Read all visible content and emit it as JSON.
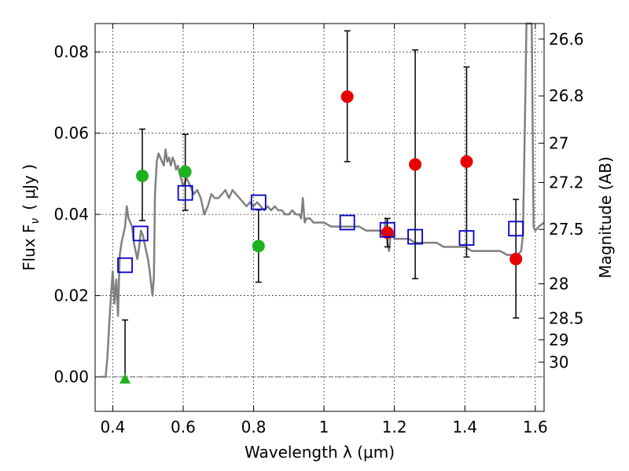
{
  "chart_data": {
    "type": "scatter",
    "xlabel": "Wavelength  λ (μm)",
    "ylabel_main": "Flux  F",
    "ylabel_sub": "ν",
    "ylabel_unit": "( μJy )",
    "ylabel_right": "Magnitude (AB)",
    "xlim": [
      0.35,
      1.625
    ],
    "ylim": [
      -0.0085,
      0.087
    ],
    "x_ticks": [
      0.4,
      0.6,
      0.8,
      1.0,
      1.2,
      1.4,
      1.6
    ],
    "x_tick_labels": [
      "0.4",
      "0.6",
      "0.8",
      "1",
      "1.2",
      "1.4",
      "1.6"
    ],
    "y_ticks": [
      0.0,
      0.02,
      0.04,
      0.06,
      0.08
    ],
    "y_tick_labels": [
      "0.00",
      "0.02",
      "0.04",
      "0.06",
      "0.08"
    ],
    "right_ticks": [
      {
        "mag": 26.6,
        "label": "26.6"
      },
      {
        "mag": 26.8,
        "label": "26.8"
      },
      {
        "mag": 27.0,
        "label": "27"
      },
      {
        "mag": 27.2,
        "label": "27.2"
      },
      {
        "mag": 27.5,
        "label": "27.5"
      },
      {
        "mag": 28.0,
        "label": "28"
      },
      {
        "mag": 28.5,
        "label": "28.5"
      },
      {
        "mag": 29.0,
        "label": "29"
      },
      {
        "mag": 30.0,
        "label": "30"
      }
    ],
    "grid": true,
    "zero_line": true,
    "colors": {
      "model": "#808080",
      "green": "#1db21d",
      "red": "#e60000",
      "blue_box": "#0000cc",
      "errorbar": "#000000"
    },
    "model_spectrum": {
      "x": [
        0.365,
        0.38,
        0.385,
        0.39,
        0.395,
        0.4,
        0.405,
        0.41,
        0.415,
        0.418,
        0.42,
        0.425,
        0.43,
        0.435,
        0.44,
        0.445,
        0.45,
        0.455,
        0.46,
        0.465,
        0.47,
        0.475,
        0.48,
        0.485,
        0.49,
        0.495,
        0.5,
        0.505,
        0.51,
        0.513,
        0.517,
        0.52,
        0.525,
        0.53,
        0.535,
        0.54,
        0.545,
        0.55,
        0.555,
        0.56,
        0.565,
        0.57,
        0.575,
        0.58,
        0.585,
        0.59,
        0.6,
        0.61,
        0.62,
        0.63,
        0.64,
        0.65,
        0.66,
        0.67,
        0.68,
        0.69,
        0.7,
        0.71,
        0.72,
        0.73,
        0.74,
        0.75,
        0.76,
        0.77,
        0.78,
        0.79,
        0.8,
        0.81,
        0.82,
        0.83,
        0.84,
        0.85,
        0.86,
        0.87,
        0.88,
        0.89,
        0.9,
        0.91,
        0.92,
        0.93,
        0.935,
        0.94,
        0.945,
        0.95,
        0.96,
        0.97,
        0.98,
        1.0,
        1.02,
        1.04,
        1.06,
        1.08,
        1.1,
        1.12,
        1.14,
        1.16,
        1.17,
        1.175,
        1.18,
        1.185,
        1.19,
        1.2,
        1.22,
        1.24,
        1.26,
        1.28,
        1.3,
        1.32,
        1.34,
        1.36,
        1.38,
        1.4,
        1.42,
        1.44,
        1.46,
        1.48,
        1.5,
        1.52,
        1.54,
        1.55,
        1.56,
        1.565,
        1.57,
        1.575,
        1.58,
        1.585,
        1.59,
        1.595,
        1.6,
        1.61,
        1.625
      ],
      "y": [
        0.0,
        0.0,
        0.005,
        0.013,
        0.02,
        0.026,
        0.018,
        0.024,
        0.015,
        0.025,
        0.03,
        0.033,
        0.035,
        0.037,
        0.042,
        0.039,
        0.038,
        0.037,
        0.033,
        0.031,
        0.029,
        0.032,
        0.036,
        0.035,
        0.033,
        0.031,
        0.029,
        0.026,
        0.022,
        0.02,
        0.025,
        0.045,
        0.053,
        0.055,
        0.054,
        0.053,
        0.052,
        0.056,
        0.053,
        0.054,
        0.052,
        0.054,
        0.053,
        0.051,
        0.052,
        0.05,
        0.047,
        0.049,
        0.047,
        0.045,
        0.046,
        0.044,
        0.04,
        0.042,
        0.045,
        0.044,
        0.044,
        0.045,
        0.046,
        0.044,
        0.046,
        0.045,
        0.044,
        0.043,
        0.042,
        0.043,
        0.042,
        0.043,
        0.042,
        0.041,
        0.042,
        0.041,
        0.042,
        0.041,
        0.041,
        0.04,
        0.04,
        0.041,
        0.04,
        0.04,
        0.039,
        0.044,
        0.038,
        0.039,
        0.039,
        0.038,
        0.038,
        0.038,
        0.037,
        0.037,
        0.037,
        0.037,
        0.037,
        0.036,
        0.036,
        0.036,
        0.035,
        0.039,
        0.033,
        0.031,
        0.036,
        0.034,
        0.034,
        0.034,
        0.033,
        0.033,
        0.033,
        0.033,
        0.032,
        0.032,
        0.032,
        0.032,
        0.031,
        0.031,
        0.031,
        0.031,
        0.031,
        0.03,
        0.03,
        0.03,
        0.031,
        0.035,
        0.06,
        0.087,
        0.087,
        0.087,
        0.087,
        0.037,
        0.036,
        0.037,
        0.038
      ]
    },
    "series": [
      {
        "name": "green detections",
        "marker": "circle",
        "color": "green",
        "points": [
          {
            "x": 0.484,
            "y": 0.0495,
            "ylo": 0.0385,
            "yhi": 0.061
          },
          {
            "x": 0.606,
            "y": 0.0505,
            "ylo": 0.041,
            "yhi": 0.0597
          },
          {
            "x": 0.814,
            "y": 0.0322,
            "ylo": 0.0233,
            "yhi": 0.0411
          }
        ]
      },
      {
        "name": "green upper limit",
        "marker": "triangle",
        "color": "green",
        "points": [
          {
            "x": 0.435,
            "y": -0.0005,
            "ylo": -0.0005,
            "yhi": 0.014
          }
        ]
      },
      {
        "name": "red detections",
        "marker": "circle",
        "color": "red",
        "points": [
          {
            "x": 1.066,
            "y": 0.069,
            "ylo": 0.053,
            "yhi": 0.0852
          },
          {
            "x": 1.18,
            "y": 0.0355,
            "ylo": 0.032,
            "yhi": 0.039
          },
          {
            "x": 1.259,
            "y": 0.0523,
            "ylo": 0.0242,
            "yhi": 0.0805
          },
          {
            "x": 1.405,
            "y": 0.053,
            "ylo": 0.0295,
            "yhi": 0.0763
          },
          {
            "x": 1.545,
            "y": 0.029,
            "ylo": 0.0145,
            "yhi": 0.0437
          }
        ]
      },
      {
        "name": "model photometry",
        "marker": "square",
        "color": "blue_box",
        "points": [
          {
            "x": 0.435,
            "y": 0.0275
          },
          {
            "x": 0.479,
            "y": 0.0353
          },
          {
            "x": 0.606,
            "y": 0.0453
          },
          {
            "x": 0.814,
            "y": 0.043
          },
          {
            "x": 1.066,
            "y": 0.038
          },
          {
            "x": 1.18,
            "y": 0.0362
          },
          {
            "x": 1.259,
            "y": 0.0345
          },
          {
            "x": 1.405,
            "y": 0.0342
          },
          {
            "x": 1.545,
            "y": 0.0365
          }
        ]
      }
    ]
  }
}
